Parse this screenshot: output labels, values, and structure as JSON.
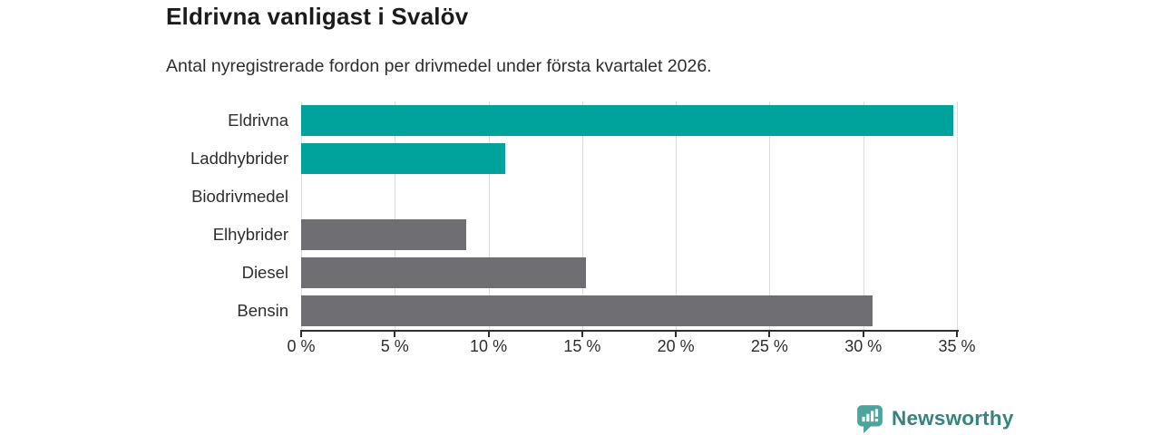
{
  "header": {
    "title": "Eldrivna vanligast i Svalöv",
    "subtitle": "Antal nyregistrerade fordon per drivmedel under första kvartalet 2026."
  },
  "chart_data": {
    "type": "bar",
    "orientation": "horizontal",
    "title": "Eldrivna vanligast i Svalöv",
    "subtitle": "Antal nyregistrerade fordon per drivmedel under första kvartalet 2026.",
    "categories": [
      "Eldrivna",
      "Laddhybrider",
      "Biodrivmedel",
      "Elhybrider",
      "Diesel",
      "Bensin"
    ],
    "values": [
      34.8,
      10.9,
      0,
      8.8,
      15.2,
      30.5
    ],
    "unit": "%",
    "xlim": [
      0,
      35
    ],
    "x_tick_values": [
      0,
      5,
      10,
      15,
      20,
      25,
      30,
      35
    ],
    "x_tick_labels": [
      "0 %",
      "5 %",
      "10 %",
      "15 %",
      "20 %",
      "25 %",
      "30 %",
      "35 %"
    ],
    "bar_colors": [
      "#00a39b",
      "#00a39b",
      "#6f6e73",
      "#6f6e73",
      "#6f6e73",
      "#6f6e73"
    ],
    "grid": true,
    "legend": false
  },
  "colors": {
    "accent_teal": "#00a39b",
    "neutral_gray": "#6f6e73",
    "gridline": "#dcdcdc",
    "axis": "#2f2f2f",
    "text_dark": "#1b1b1b",
    "text_body": "#2e2e2e",
    "logo_icon": "#4ba59e",
    "logo_text": "#37837f"
  },
  "footer": {
    "brand": "Newsworthy"
  }
}
